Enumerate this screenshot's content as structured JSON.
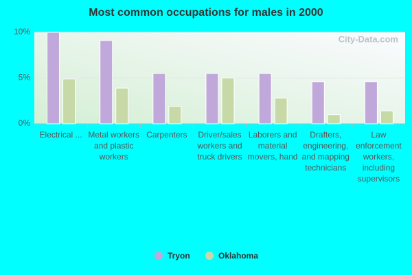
{
  "chart_data": {
    "type": "bar",
    "title": "Most common occupations for males in 2000",
    "watermark": "City-Data.com",
    "categories": [
      "Electrical ...",
      "Metal workers and plastic workers",
      "Carpenters",
      "Driver/sales workers and truck drivers",
      "Laborers and material movers, hand",
      "Drafters, engineering, and mapping technicians",
      "Law enforcement workers, including supervisors"
    ],
    "series": [
      {
        "name": "Tryon",
        "color": "#c0a8da",
        "values": [
          10.0,
          9.1,
          5.5,
          5.5,
          5.5,
          4.6,
          4.6
        ]
      },
      {
        "name": "Oklahoma",
        "color": "#c8d9a8",
        "values": [
          4.9,
          3.9,
          1.9,
          5.0,
          2.8,
          1.0,
          1.4
        ]
      }
    ],
    "ylim": [
      0,
      10
    ],
    "yticks": [
      {
        "value": 0,
        "label": "0%"
      },
      {
        "value": 5,
        "label": "5%"
      },
      {
        "value": 10,
        "label": "10%"
      }
    ],
    "grid": true,
    "legend": "bottom"
  }
}
